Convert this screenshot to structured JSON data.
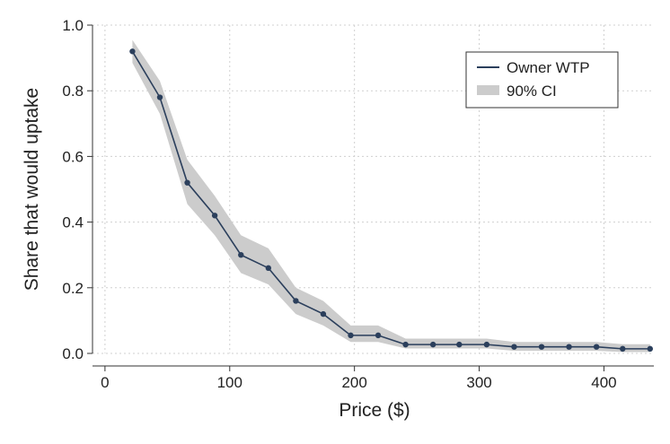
{
  "chart_data": {
    "type": "line",
    "title": "",
    "xlabel": "Price ($)",
    "ylabel": "Share that would uptake",
    "xlim": [
      -10,
      440
    ],
    "ylim": [
      0,
      1.0
    ],
    "x_ticks": [
      0,
      100,
      200,
      300,
      400
    ],
    "y_ticks": [
      0.0,
      0.2,
      0.4,
      0.6,
      0.8,
      1.0
    ],
    "x_tick_labels": [
      "0",
      "100",
      "200",
      "300",
      "400"
    ],
    "y_tick_labels": [
      "0.0",
      "0.2",
      "0.4",
      "0.6",
      "0.8",
      "1.0"
    ],
    "grid": true,
    "legend_position": "top-right",
    "series": [
      {
        "name": "Owner WTP",
        "color": "#2b3f5c",
        "x": [
          22,
          44,
          66,
          88,
          109,
          131,
          153,
          175,
          197,
          219,
          241,
          263,
          284,
          306,
          328,
          350,
          372,
          394,
          415,
          437
        ],
        "y": [
          0.92,
          0.78,
          0.52,
          0.42,
          0.3,
          0.26,
          0.16,
          0.12,
          0.055,
          0.055,
          0.027,
          0.027,
          0.027,
          0.027,
          0.02,
          0.02,
          0.02,
          0.02,
          0.014,
          0.014
        ]
      }
    ],
    "ci": {
      "name": "90% CI",
      "color": "#cccccc",
      "lower": [
        0.885,
        0.73,
        0.455,
        0.36,
        0.245,
        0.21,
        0.12,
        0.085,
        0.035,
        0.035,
        0.015,
        0.015,
        0.015,
        0.015,
        0.008,
        0.008,
        0.008,
        0.008,
        0.004,
        0.004
      ],
      "upper": [
        0.955,
        0.83,
        0.59,
        0.48,
        0.36,
        0.32,
        0.2,
        0.16,
        0.085,
        0.085,
        0.045,
        0.045,
        0.045,
        0.045,
        0.035,
        0.035,
        0.035,
        0.035,
        0.028,
        0.028
      ]
    },
    "legend": [
      {
        "label": "Owner WTP",
        "kind": "line"
      },
      {
        "label": "90% CI",
        "kind": "area"
      }
    ]
  }
}
